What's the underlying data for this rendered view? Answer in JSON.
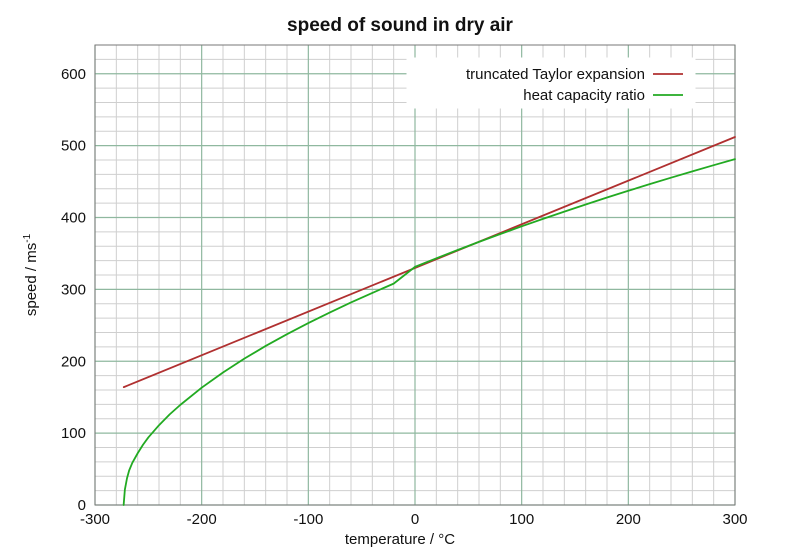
{
  "chart_data": {
    "type": "line",
    "title": "speed of sound in dry air",
    "xlabel": "temperature / °C",
    "ylabel": "speed / ms",
    "ylabel_superscript": "-1",
    "xlim": [
      -300,
      300
    ],
    "ylim": [
      0,
      640
    ],
    "x_ticks": [
      {
        "value": -300,
        "label": "-300"
      },
      {
        "value": -200,
        "label": "-200"
      },
      {
        "value": -100,
        "label": "-100"
      },
      {
        "value": 0,
        "label": "0"
      },
      {
        "value": 100,
        "label": "100"
      },
      {
        "value": 200,
        "label": "200"
      },
      {
        "value": 300,
        "label": "300"
      }
    ],
    "y_ticks": [
      {
        "value": 0,
        "label": "0"
      },
      {
        "value": 100,
        "label": "100"
      },
      {
        "value": 200,
        "label": "200"
      },
      {
        "value": 300,
        "label": "300"
      },
      {
        "value": 400,
        "label": "400"
      },
      {
        "value": 500,
        "label": "500"
      },
      {
        "value": 600,
        "label": "600"
      }
    ],
    "grid": true,
    "legend_position": "top-right",
    "series": [
      {
        "name": "truncated Taylor expansion",
        "color": "#b03030",
        "x": [
          -273,
          300
        ],
        "values": [
          164,
          512
        ]
      },
      {
        "name": "heat capacity ratio",
        "color": "#22aa22",
        "x": [
          -273.15,
          -272,
          -270,
          -268,
          -265,
          -260,
          -255,
          -250,
          -240,
          -230,
          -220,
          -200,
          -180,
          -160,
          -140,
          -120,
          -100,
          -80,
          -60,
          -40,
          -20,
          0,
          20,
          40,
          60,
          80,
          100,
          120,
          140,
          160,
          180,
          200,
          220,
          240,
          260,
          280,
          300
        ],
        "values": [
          0,
          21.5,
          37.2,
          48,
          58.7,
          72,
          83.8,
          94,
          111,
          126.1,
          139.3,
          163.2,
          184.4,
          203.6,
          221.3,
          237.7,
          253.1,
          267.8,
          281.8,
          295.1,
          308,
          331.3,
          343.2,
          354.8,
          366.1,
          377,
          387.7,
          398.1,
          408.2,
          418.1,
          427.8,
          437.2,
          446.4,
          455.4,
          464.2,
          472.8,
          481.2
        ]
      }
    ]
  }
}
